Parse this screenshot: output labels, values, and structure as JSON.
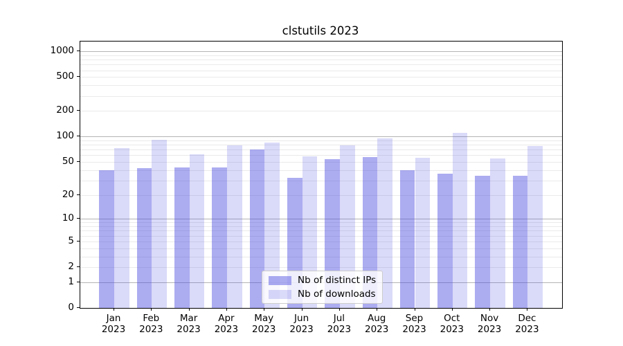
{
  "title": "clstutils 2023",
  "chart_data": {
    "type": "bar",
    "title": "clstutils 2023",
    "yscale": "log1p",
    "xlabel": "",
    "ylabel": "",
    "categories": [
      "Jan",
      "Feb",
      "Mar",
      "Apr",
      "May",
      "Jun",
      "Jul",
      "Aug",
      "Sep",
      "Oct",
      "Nov",
      "Dec"
    ],
    "year_label": "2023",
    "series": [
      {
        "name": "Nb of distinct IPs",
        "color": "rgba(70,70,225,0.45)",
        "values": [
          40,
          42,
          43,
          43,
          70,
          32,
          54,
          57,
          40,
          36,
          34,
          34
        ]
      },
      {
        "name": "Nb of downloads",
        "color": "rgba(70,70,225,0.20)",
        "values": [
          73,
          91,
          61,
          78,
          85,
          58,
          79,
          95,
          56,
          110,
          55,
          77
        ]
      }
    ],
    "yticks": [
      0,
      1,
      2,
      5,
      10,
      20,
      50,
      100,
      200,
      500,
      1000
    ],
    "ylim": [
      0,
      1300
    ],
    "grid": true,
    "legend_position": "lower center",
    "colors": {
      "axis": "#000000",
      "grid_major": "#b4b4b4",
      "grid_minor": "#eaeaea",
      "background": "#ffffff",
      "bar_ips": "rgba(70,70,225,0.45)",
      "bar_downloads": "rgba(70,70,225,0.20)"
    }
  }
}
